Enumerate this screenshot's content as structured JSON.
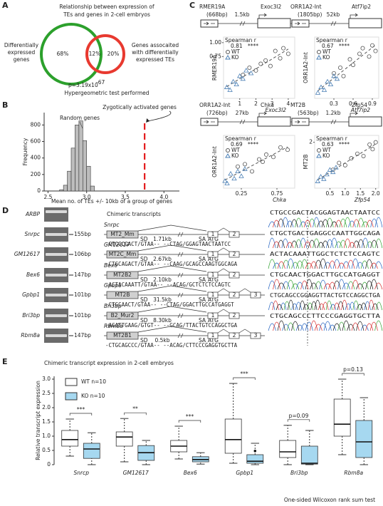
{
  "panel_labels": [
    "A",
    "B",
    "C",
    "D",
    "E"
  ],
  "venn": {
    "title": [
      "Relationship between expression of",
      "TEs and genes in 2-cell embryos"
    ],
    "left_label": [
      "Differentially",
      "expressed",
      "genes"
    ],
    "right_label": [
      "Genes assocaited",
      "with differentially",
      "expressed TEs"
    ],
    "left_only": "68%",
    "overlap": "12%",
    "right_only": "20%",
    "pvalue": "p=3.19x10",
    "pvalue_exponent": "-67",
    "test": "Hypergeometric test performed"
  },
  "chart_data": [
    {
      "type": "histogram",
      "ylabel": "Frequency",
      "xlabel": "Mean no. of TEs +/- 10kb of a group of genes",
      "bins": [
        2.65,
        2.7,
        2.75,
        2.8,
        2.85,
        2.9,
        2.95,
        3.0,
        3.05,
        3.1
      ],
      "values": [
        15,
        70,
        240,
        520,
        800,
        850,
        610,
        300,
        60
      ],
      "color": "#bdbdbd",
      "xlim": [
        2.45,
        4.2
      ],
      "ylim": [
        0,
        950
      ],
      "xticks": [
        2.5,
        {
          "value": 3,
          "label": "3.0"
        },
        3.5,
        {
          "value": 4,
          "label": "4.0"
        }
      ],
      "yticks": [
        0,
        200,
        400,
        600,
        800
      ],
      "random_label": "Random genes",
      "zygotic_label": "Zygotically activated genes",
      "zygotic_value": 3.75,
      "zygotic_color": "#e31a1c"
    },
    {
      "type": "scatter",
      "header": {
        "te": "RMER19A",
        "te_size": "(668bp)",
        "distance": "1.5kb",
        "gene": "Exoc3l2"
      },
      "stat_label": "Spearman r",
      "r": 0.81,
      "sig": "****",
      "xlabel": "Exoc3l2",
      "ylabel": "RMER19A",
      "xlim": [
        0,
        4.4
      ],
      "ylim": [
        0,
        1.1
      ],
      "xticks": [
        1,
        2,
        3,
        4
      ],
      "yticks": [
        {
          "value": 1,
          "label": "1.00"
        },
        0.75
      ],
      "series": [
        {
          "name": "WT",
          "marker": "circle",
          "color": "#555555",
          "x": [
            1.2,
            1.6,
            2.0,
            2.3,
            2.6,
            2.9,
            3.2,
            3.5,
            3.7,
            4.0
          ],
          "values": [
            0.42,
            0.55,
            0.5,
            0.62,
            0.68,
            0.58,
            0.85,
            0.72,
            0.9,
            0.8
          ]
        },
        {
          "name": "KO",
          "marker": "triangle",
          "color": "#4a7fb5",
          "x": [
            0.2,
            0.4,
            0.6,
            0.8,
            1.0,
            1.2,
            1.4,
            1.7
          ],
          "values": [
            0.2,
            0.15,
            0.3,
            0.25,
            0.4,
            0.35,
            0.5,
            0.45
          ]
        }
      ]
    },
    {
      "type": "scatter",
      "header": {
        "te": "ORR1A2-Int",
        "te_size": "(1805bp)",
        "distance": "52kb",
        "gene": "Atf7ip2"
      },
      "stat_label": "Spearman r",
      "r": 0.67,
      "sig": "****",
      "xlabel": "Atf7ip2",
      "ylabel": "ORR1A2-Int",
      "xlim": [
        0,
        1.0
      ],
      "ylim": [
        0,
        1.1
      ],
      "xticks": [
        0.3,
        0.6,
        0.9
      ],
      "series": [
        {
          "name": "WT",
          "marker": "circle",
          "color": "#555555",
          "x": [
            0.3,
            0.4,
            0.45,
            0.55,
            0.6,
            0.7,
            0.75,
            0.85,
            0.9,
            0.95
          ],
          "values": [
            0.45,
            0.55,
            0.4,
            0.7,
            0.6,
            0.8,
            0.9,
            0.75,
            0.95,
            0.85
          ]
        },
        {
          "name": "KO",
          "marker": "triangle",
          "color": "#4a7fb5",
          "x": [
            0.05,
            0.1,
            0.15,
            0.2,
            0.25,
            0.3,
            0.35
          ],
          "values": [
            0.1,
            0.2,
            0.15,
            0.3,
            0.25,
            0.4,
            0.35
          ]
        }
      ]
    },
    {
      "type": "scatter",
      "header": {
        "te": "ORR1A2-Int",
        "te_size": "(726bp)",
        "distance": "27kb",
        "gene": "Chka"
      },
      "stat_label": "Spearman r",
      "r": 0.69,
      "sig": "****",
      "xlabel": "Chka",
      "ylabel": "ORR1A2-Int",
      "xlim": [
        0,
        1.0
      ],
      "ylim": [
        0,
        1.1
      ],
      "xticks": [
        0.25,
        0.75
      ],
      "series": [
        {
          "name": "WT",
          "marker": "circle",
          "color": "#555555",
          "x": [
            0.2,
            0.3,
            0.4,
            0.5,
            0.55,
            0.6,
            0.7,
            0.8,
            0.9
          ],
          "values": [
            0.45,
            0.5,
            0.35,
            0.6,
            0.55,
            0.7,
            0.65,
            0.85,
            0.8
          ]
        },
        {
          "name": "KO",
          "marker": "triangle",
          "color": "#4a7fb5",
          "x": [
            0.02,
            0.05,
            0.1,
            0.15,
            0.2,
            0.25,
            0.3
          ],
          "values": [
            0.15,
            0.1,
            0.3,
            0.2,
            0.35,
            0.25,
            0.4
          ]
        }
      ]
    },
    {
      "type": "scatter",
      "header": {
        "te": "MT2B",
        "te_size": "(563bp)",
        "distance": "1.2kb",
        "gene": "Zfp54"
      },
      "stat_label": "Spearman r",
      "r": 0.63,
      "sig": "****",
      "xlabel": "Zfp54",
      "ylabel": "MT2B",
      "xlim": [
        0,
        2.1
      ],
      "ylim": [
        0,
        2.3
      ],
      "xticks": [
        0.5,
        {
          "value": 1,
          "label": "1.0"
        },
        1.5,
        {
          "value": 2,
          "label": "2.0"
        }
      ],
      "yticks": [
        2
      ],
      "series": [
        {
          "name": "WT",
          "marker": "circle",
          "color": "#555555",
          "x": [
            0.6,
            0.8,
            1.0,
            1.2,
            1.4,
            1.6,
            1.8,
            1.9,
            2.0
          ],
          "values": [
            0.8,
            1.1,
            1.0,
            1.3,
            1.5,
            1.4,
            1.9,
            1.7,
            2.0
          ]
        },
        {
          "name": "KO",
          "marker": "triangle",
          "color": "#4a7fb5",
          "x": [
            0.1,
            0.2,
            0.3,
            0.4,
            0.5,
            0.6,
            0.7
          ],
          "values": [
            0.3,
            0.5,
            0.4,
            0.6,
            0.8,
            0.7,
            0.9
          ]
        }
      ]
    },
    {
      "type": "box",
      "title": "Chimeric transcript expression in 2-cell embryos",
      "ylabel": "Relative transcript expression",
      "categories": [
        "Snrcp",
        "GM12617",
        "Bex6",
        "Gpbp1",
        "Bri3bp",
        "Rbm8a"
      ],
      "ylim": [
        0,
        3.1
      ],
      "yticks": [
        0,
        0.5,
        {
          "value": 1,
          "label": "1.0"
        },
        1.5,
        {
          "value": 2,
          "label": "2.0"
        },
        2.5,
        {
          "value": 3,
          "label": "3.0"
        }
      ],
      "series": [
        {
          "name": "WT n=10",
          "color": "#ffffff",
          "min": [
            0.3,
            0.1,
            0.2,
            0.05,
            0.0,
            0.35
          ],
          "q1": [
            0.65,
            0.65,
            0.45,
            0.4,
            0.25,
            1.0
          ],
          "median": [
            0.88,
            0.97,
            0.65,
            0.88,
            0.45,
            1.42
          ],
          "q3": [
            1.2,
            1.15,
            0.85,
            1.6,
            0.85,
            2.3
          ],
          "max": [
            1.6,
            1.62,
            1.35,
            2.85,
            1.38,
            3.0
          ]
        },
        {
          "name": "KO n=10",
          "color": "#a6d8f0",
          "min": [
            0.0,
            0.0,
            0.02,
            0.0,
            0.0,
            0.0
          ],
          "q1": [
            0.22,
            0.15,
            0.1,
            0.05,
            0.02,
            0.25
          ],
          "median": [
            0.55,
            0.42,
            0.18,
            0.12,
            0.05,
            0.8
          ],
          "q3": [
            0.75,
            0.67,
            0.28,
            0.35,
            0.65,
            1.55
          ],
          "max": [
            1.12,
            0.85,
            0.42,
            0.75,
            1.2,
            2.35
          ],
          "outliers": [
            [],
            [],
            [],
            [
              0.48
            ],
            [],
            []
          ]
        }
      ],
      "significance": [
        "***",
        "**",
        "***",
        "***",
        "p=0.09",
        "p=0.13"
      ],
      "test": "One-sided Wilcoxon rank sum test"
    }
  ],
  "chimeric": {
    "title": "Chimeric transcripts",
    "reference": "ARBP",
    "sd": "SD",
    "sa": "SA",
    "atg": "ATG",
    "rows": [
      {
        "gene": "Snrpc",
        "band": "155bp",
        "te": "MT2_Mm",
        "distance": "1.71kb",
        "exons": [
          "1",
          "2"
        ],
        "junction": "-CTGCCGACT/GTAA-- --CTAG/GGAGTAACTAATCC",
        "trace": "CTGCCGACTACGGAGTAACTAATCC"
      },
      {
        "gene": "GM12617",
        "band": "106bp",
        "te": "MT2C_Mm",
        "distance": "2.67kb",
        "exons": [
          "1",
          "2"
        ],
        "junction": "-CTGCAGACT/GTAA-- --CAAG/GCAGCCAAGTGGCAGA",
        "trace": "CTGCTGACTGAGGCCAATTGGCAGA"
      },
      {
        "gene": "Bex6",
        "band": "147bp",
        "te": "MT2B2",
        "distance": "2.10kb",
        "exons": [
          "1",
          "2"
        ],
        "junction": "-ACTACAAATT/GTAA-- --ACAG/GCTCTCTCCAGTC",
        "trace": "ACTACAAATTGGCTCTCTCCAGTC"
      },
      {
        "gene": "Gpbp1",
        "band": "101bp",
        "te": "MT2B",
        "distance": "31.5kb",
        "exons": [
          "1",
          "2",
          "3"
        ],
        "junction": "-CTGCAACT/GTAA-- --CTAG/GGACTTGCCATGAGGT",
        "trace": "CTGCAACTGGACTTGCCATGAGGT"
      },
      {
        "gene": "Bri3bp",
        "band": "101bp",
        "te": "B2_Mur2",
        "distance": "8.30kb",
        "exons": [
          "1",
          "2"
        ],
        "junction": "-AGATTGAAG/GTGT-- --GCAG/TTACTGTCCAGGCTGA",
        "trace": "CTGCAGCCGGAGGTTACTGTCCAGGCTGA"
      },
      {
        "gene": "Rbm8a",
        "band": "147bp",
        "te": "MT2B1",
        "distance": "0.5kb",
        "exons": [
          "1",
          "2",
          "3"
        ],
        "junction": "-CTGCAGCCC/GTAA-- --ACAG/CTTCCCGAGGTGCTTA",
        "trace": "CTGCAGCCCTTCCCGAGGTGCTTA"
      }
    ]
  }
}
